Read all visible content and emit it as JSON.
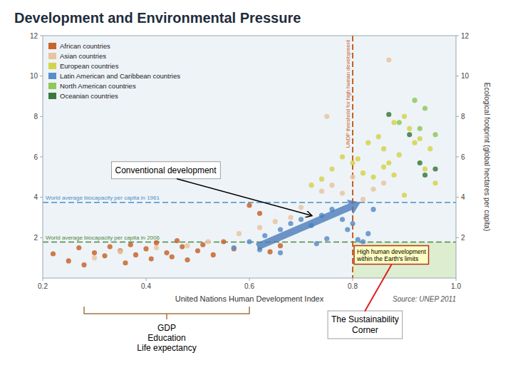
{
  "chart_data": {
    "type": "scatter",
    "title": "Development and Environmental Pressure",
    "xlabel": "United Nations Human Development Index",
    "ylabel": "Ecological footprint (global hectares per capita)",
    "xlim": [
      0.2,
      1.0
    ],
    "ylim": [
      0,
      12
    ],
    "xticks": [
      0.2,
      0.4,
      0.6,
      0.8,
      {
        "value": 1.0,
        "label": "1.0"
      }
    ],
    "yticks": [
      2,
      4,
      6,
      8,
      10,
      12
    ],
    "y2lim": [
      0,
      12
    ],
    "y2ticks": [
      2,
      4,
      6,
      8,
      10,
      12
    ],
    "grid": false,
    "legend": "upper left",
    "series": [
      {
        "name": "African countries",
        "color": "#c8652a",
        "x": [
          0.22,
          0.25,
          0.27,
          0.28,
          0.3,
          0.32,
          0.33,
          0.35,
          0.36,
          0.37,
          0.38,
          0.4,
          0.41,
          0.42,
          0.44,
          0.45,
          0.46,
          0.47,
          0.48,
          0.5,
          0.51,
          0.53,
          0.55,
          0.57,
          0.6,
          0.62,
          0.64,
          0.66
        ],
        "values": [
          1.2,
          0.85,
          1.5,
          0.65,
          1.25,
          1.1,
          1.55,
          1.35,
          0.75,
          1.65,
          1.15,
          1.45,
          0.95,
          1.75,
          1.25,
          1.05,
          1.85,
          1.55,
          0.9,
          1.35,
          1.65,
          1.15,
          1.8,
          1.45,
          3.6,
          3.2,
          1.3,
          1.6
        ]
      },
      {
        "name": "Asian countries",
        "color": "#e8c4a0",
        "x": [
          0.3,
          0.35,
          0.42,
          0.48,
          0.52,
          0.58,
          0.62,
          0.65,
          0.68,
          0.7,
          0.74,
          0.76,
          0.78,
          0.8,
          0.82,
          0.84,
          0.86,
          0.75,
          0.87
        ],
        "values": [
          1.0,
          1.3,
          1.5,
          1.6,
          1.8,
          2.2,
          2.5,
          2.8,
          3.0,
          3.5,
          4.3,
          4.6,
          4.2,
          5.0,
          3.9,
          4.4,
          4.7,
          8.0,
          10.8
        ]
      },
      {
        "name": "European countries",
        "color": "#d4d44a",
        "x": [
          0.72,
          0.74,
          0.76,
          0.78,
          0.8,
          0.81,
          0.82,
          0.83,
          0.84,
          0.85,
          0.86,
          0.87,
          0.88,
          0.89,
          0.9,
          0.91,
          0.92,
          0.93,
          0.94,
          0.95,
          0.96,
          0.88,
          0.9,
          0.86
        ],
        "values": [
          4.6,
          4.9,
          5.4,
          6.0,
          5.7,
          5.9,
          5.2,
          6.7,
          5.0,
          7.0,
          6.4,
          5.7,
          7.7,
          6.1,
          8.0,
          7.4,
          6.7,
          6.9,
          5.4,
          6.4,
          4.7,
          5.1,
          4.1,
          5.5
        ]
      },
      {
        "name": "Latin American and Caribbean countries",
        "color": "#5a8ec8",
        "x": [
          0.57,
          0.6,
          0.63,
          0.66,
          0.68,
          0.7,
          0.72,
          0.74,
          0.76,
          0.78,
          0.79,
          0.8,
          0.81,
          0.82,
          0.83,
          0.84,
          0.73,
          0.75,
          0.66,
          0.62
        ],
        "values": [
          1.5,
          1.8,
          2.1,
          2.4,
          2.7,
          2.9,
          2.6,
          3.1,
          3.4,
          2.9,
          2.4,
          2.7,
          1.9,
          1.8,
          2.2,
          3.4,
          1.7,
          1.95,
          1.25,
          1.4
        ]
      },
      {
        "name": "North American countries",
        "color": "#8ec858",
        "x": [
          0.89,
          0.92,
          0.94,
          0.96,
          0.93
        ],
        "values": [
          7.7,
          8.8,
          8.4,
          7.1,
          7.4
        ]
      },
      {
        "name": "Oceanian countries",
        "color": "#3a7a3a",
        "x": [
          0.87,
          0.91,
          0.93,
          0.94,
          0.96
        ],
        "values": [
          8.1,
          7.1,
          5.7,
          5.1,
          5.4
        ]
      }
    ],
    "reference_lines": [
      {
        "axis": "y",
        "value": 3.74,
        "label": "World average biocapacity per capita in 1961",
        "color": "#4a90c4"
      },
      {
        "axis": "y",
        "value": 1.78,
        "label": "World average biocapacity per capita in 2006",
        "color": "#4a8a3c"
      },
      {
        "axis": "x",
        "value": 0.8,
        "label": "UNDP threshold for high human development",
        "color": "#c8601a"
      }
    ],
    "annotations": [
      {
        "text": "Conventional development"
      },
      {
        "text": "High human development\nwithin the Earth's limits"
      },
      {
        "text": "Source: UNEP 2011"
      },
      {
        "text": "GDP\nEducation\nLife expectancy"
      },
      {
        "text": "The Sustainability\nCorner"
      }
    ]
  }
}
